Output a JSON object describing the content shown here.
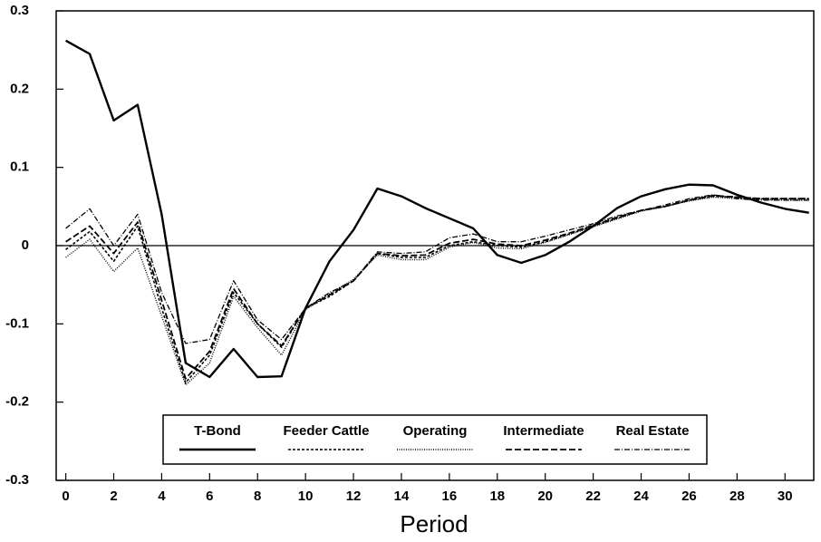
{
  "chart_data": {
    "type": "line",
    "x_label": "Period",
    "x": [
      0,
      1,
      2,
      3,
      4,
      5,
      6,
      7,
      8,
      9,
      10,
      11,
      12,
      13,
      14,
      15,
      16,
      17,
      18,
      19,
      20,
      21,
      22,
      23,
      24,
      25,
      26,
      27,
      28,
      29,
      30,
      31
    ],
    "series": [
      {
        "name": "T-Bond",
        "color": "#000000",
        "dash": "none",
        "width": 2.4,
        "values": [
          0.262,
          0.245,
          0.16,
          0.18,
          0.04,
          -0.15,
          -0.168,
          -0.132,
          -0.168,
          -0.167,
          -0.08,
          -0.02,
          0.02,
          0.073,
          0.063,
          0.048,
          0.035,
          0.022,
          -0.012,
          -0.022,
          -0.012,
          0.005,
          0.025,
          0.048,
          0.063,
          0.072,
          0.078,
          0.077,
          0.065,
          0.055,
          0.047,
          0.042
        ]
      },
      {
        "name": "Feeder Cattle",
        "color": "#000000",
        "dash": "3,2",
        "width": 1.6,
        "values": [
          -0.005,
          0.018,
          -0.02,
          0.025,
          -0.08,
          -0.175,
          -0.14,
          -0.06,
          -0.1,
          -0.13,
          -0.08,
          -0.065,
          -0.045,
          -0.01,
          -0.015,
          -0.015,
          0.0,
          0.005,
          0.0,
          -0.002,
          0.005,
          0.015,
          0.025,
          0.035,
          0.045,
          0.05,
          0.058,
          0.063,
          0.062,
          0.06,
          0.06,
          0.06
        ]
      },
      {
        "name": "Operating",
        "color": "#000000",
        "dash": "1,1.5",
        "width": 1.4,
        "values": [
          -0.015,
          0.008,
          -0.033,
          -0.003,
          -0.09,
          -0.178,
          -0.15,
          -0.065,
          -0.105,
          -0.14,
          -0.082,
          -0.062,
          -0.043,
          -0.012,
          -0.018,
          -0.018,
          -0.002,
          0.004,
          -0.003,
          -0.004,
          0.004,
          0.014,
          0.024,
          0.034,
          0.044,
          0.05,
          0.057,
          0.062,
          0.06,
          0.059,
          0.058,
          0.058
        ]
      },
      {
        "name": "Intermediate",
        "color": "#000000",
        "dash": "7,3",
        "width": 1.8,
        "values": [
          0.005,
          0.025,
          -0.01,
          0.03,
          -0.07,
          -0.17,
          -0.135,
          -0.055,
          -0.1,
          -0.128,
          -0.08,
          -0.063,
          -0.045,
          -0.01,
          -0.013,
          -0.012,
          0.003,
          0.008,
          0.002,
          0.0,
          0.007,
          0.016,
          0.026,
          0.036,
          0.045,
          0.05,
          0.058,
          0.064,
          0.062,
          0.06,
          0.06,
          0.06
        ]
      },
      {
        "name": "Real Estate",
        "color": "#000000",
        "dash": "6,2,1,2",
        "width": 1.3,
        "values": [
          0.022,
          0.047,
          0.0,
          0.04,
          -0.06,
          -0.125,
          -0.12,
          -0.045,
          -0.095,
          -0.12,
          -0.08,
          -0.06,
          -0.045,
          -0.008,
          -0.01,
          -0.008,
          0.01,
          0.015,
          0.005,
          0.005,
          0.012,
          0.02,
          0.028,
          0.038,
          0.045,
          0.052,
          0.06,
          0.065,
          0.06,
          0.058,
          0.058,
          0.058
        ]
      }
    ],
    "xlim": [
      -0.4,
      31.2
    ],
    "xticks": [
      0,
      2,
      4,
      6,
      8,
      10,
      12,
      14,
      16,
      18,
      20,
      22,
      24,
      26,
      28,
      30
    ],
    "ylim": [
      -0.3,
      0.3
    ],
    "yticks": [
      -0.3,
      -0.2,
      -0.1,
      0,
      0.1,
      0.2,
      0.3
    ],
    "legend": "bottom",
    "grid": false
  }
}
